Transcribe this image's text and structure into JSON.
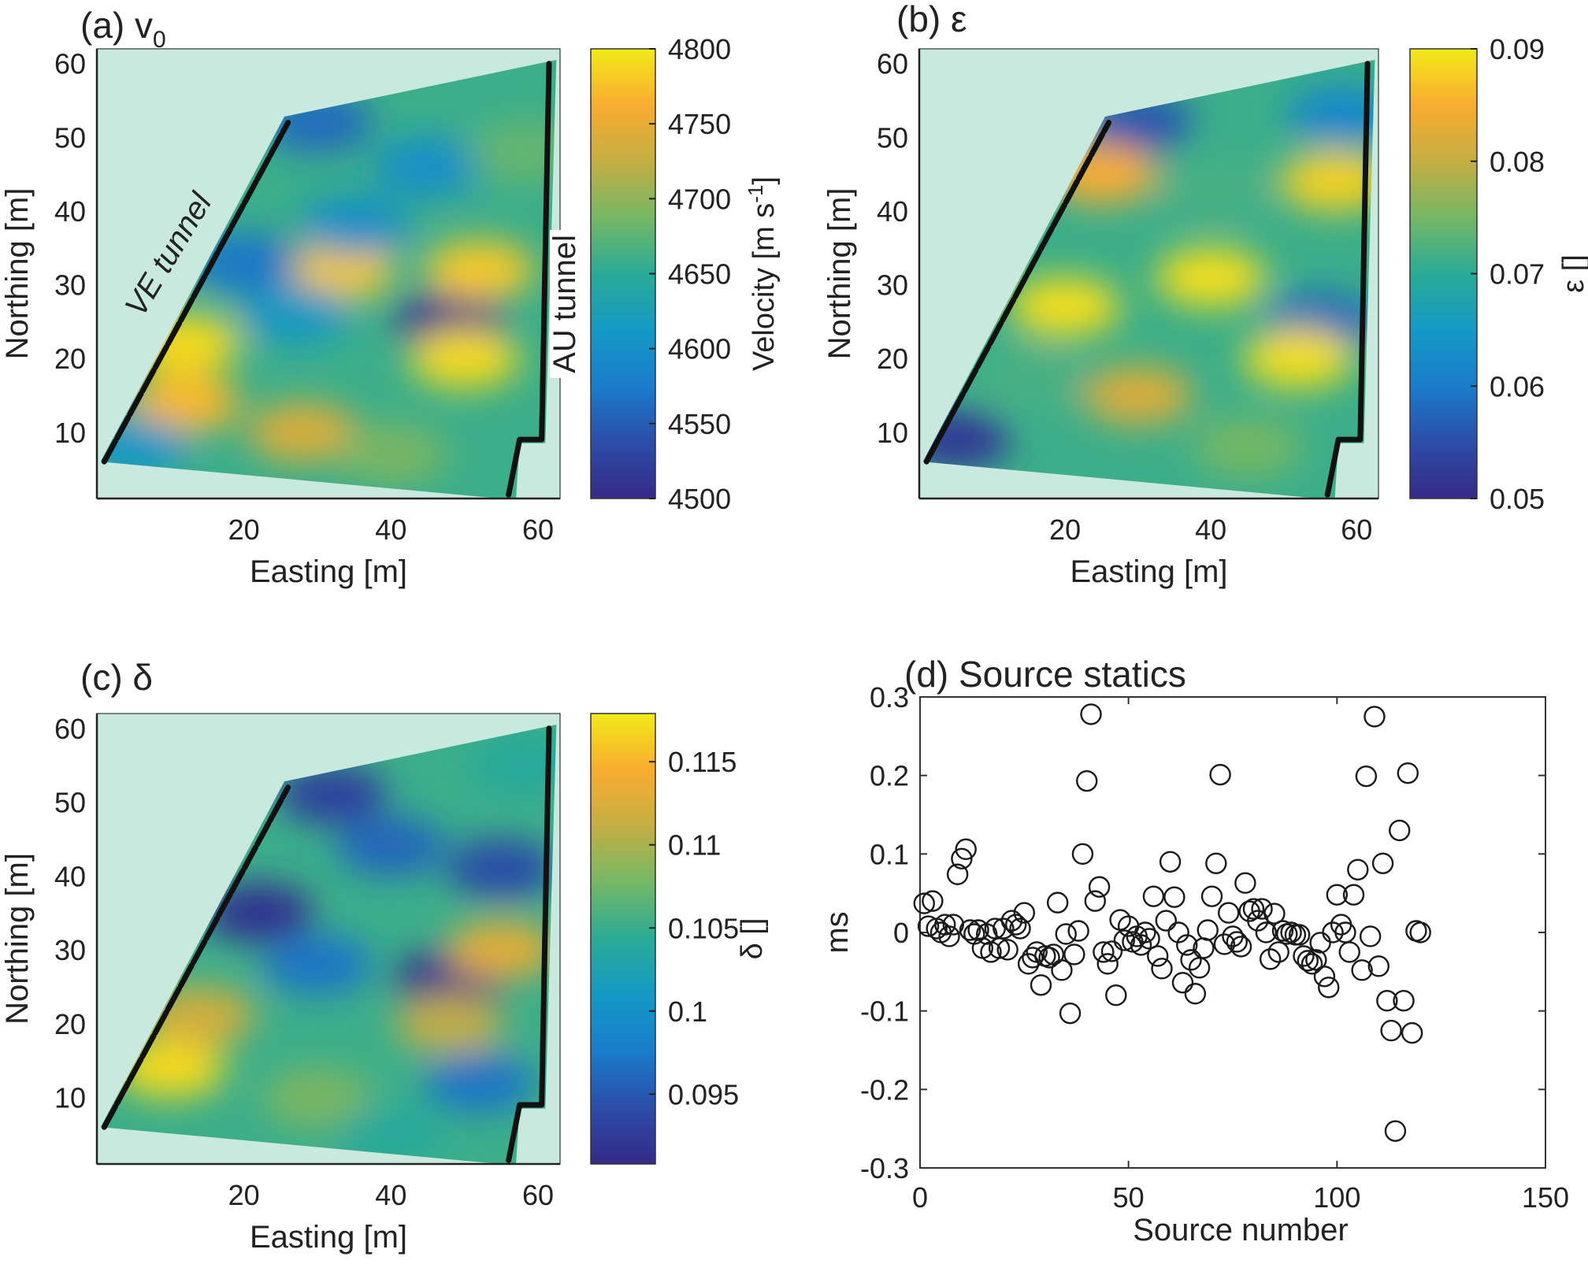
{
  "figure": {
    "panels": [
      "a",
      "b",
      "c",
      "d"
    ]
  },
  "chart_data": [
    {
      "id": "a",
      "type": "heatmap",
      "title": "(a) v",
      "title_subscript": "0",
      "xlabel": "Easting [m]",
      "ylabel": "Northing [m]",
      "xlim": [
        0,
        63
      ],
      "ylim": [
        1,
        62
      ],
      "xticks": [
        20,
        40,
        60
      ],
      "yticks": [
        10,
        20,
        30,
        40,
        50,
        60
      ],
      "colorbar": {
        "label": "Velocity [m s",
        "label_sup": "-1",
        "label_end": "]",
        "range": [
          4500,
          4800
        ],
        "ticks": [
          4500,
          4550,
          4600,
          4650,
          4700,
          4750,
          4800
        ],
        "colormap": "parula"
      },
      "annotations": [
        "VE tunnel",
        "AU tunnel"
      ],
      "features": [
        {
          "x": 48,
          "y": 25,
          "value": 4510
        },
        {
          "x": 50,
          "y": 20,
          "value": 4790
        },
        {
          "x": 33,
          "y": 32,
          "value": 4780
        },
        {
          "x": 52,
          "y": 32,
          "value": 4780
        },
        {
          "x": 12,
          "y": 22,
          "value": 4790
        },
        {
          "x": 12,
          "y": 14,
          "value": 4770
        },
        {
          "x": 30,
          "y": 52,
          "value": 4560
        },
        {
          "x": 45,
          "y": 46,
          "value": 4600
        },
        {
          "x": 20,
          "y": 33,
          "value": 4570
        },
        {
          "x": 27,
          "y": 26,
          "value": 4610
        },
        {
          "x": 5,
          "y": 8,
          "value": 4610
        },
        {
          "x": 28,
          "y": 10,
          "value": 4740
        },
        {
          "x": 40,
          "y": 7,
          "value": 4690
        },
        {
          "x": 35,
          "y": 38,
          "value": 4600
        },
        {
          "x": 58,
          "y": 48,
          "value": 4680
        }
      ]
    },
    {
      "id": "b",
      "type": "heatmap",
      "title": "(b) ε",
      "xlabel": "Easting [m]",
      "ylabel": "Northing [m]",
      "xlim": [
        0,
        63
      ],
      "ylim": [
        1,
        62
      ],
      "xticks": [
        20,
        40,
        60
      ],
      "yticks": [
        10,
        20,
        30,
        40,
        50,
        60
      ],
      "colorbar": {
        "label": "ε []",
        "range": [
          0.05,
          0.09
        ],
        "ticks": [
          0.05,
          0.06,
          0.07,
          0.08,
          0.09
        ],
        "colormap": "parula"
      },
      "features": [
        {
          "x": 5,
          "y": 9,
          "value": 0.052
        },
        {
          "x": 30,
          "y": 52,
          "value": 0.056
        },
        {
          "x": 55,
          "y": 25,
          "value": 0.058
        },
        {
          "x": 58,
          "y": 53,
          "value": 0.062
        },
        {
          "x": 20,
          "y": 27,
          "value": 0.089
        },
        {
          "x": 40,
          "y": 31,
          "value": 0.089
        },
        {
          "x": 52,
          "y": 20,
          "value": 0.089
        },
        {
          "x": 57,
          "y": 44,
          "value": 0.088
        },
        {
          "x": 40,
          "y": 43,
          "value": 0.072
        },
        {
          "x": 30,
          "y": 15,
          "value": 0.082
        },
        {
          "x": 15,
          "y": 17,
          "value": 0.072
        },
        {
          "x": 25,
          "y": 45,
          "value": 0.085
        },
        {
          "x": 45,
          "y": 8,
          "value": 0.075
        }
      ]
    },
    {
      "id": "c",
      "type": "heatmap",
      "title": "(c) δ",
      "xlabel": "Easting [m]",
      "ylabel": "Northing [m]",
      "xlim": [
        0,
        63
      ],
      "ylim": [
        1,
        62
      ],
      "xticks": [
        20,
        40,
        60
      ],
      "yticks": [
        10,
        20,
        30,
        40,
        50,
        60
      ],
      "colorbar": {
        "label": "δ []",
        "range": [
          0.0908,
          0.1179
        ],
        "ticks": [
          0.095,
          0.1,
          0.105,
          0.11,
          0.115
        ],
        "colormap": "parula"
      },
      "features": [
        {
          "x": 10,
          "y": 14,
          "value": 0.117
        },
        {
          "x": 22,
          "y": 35,
          "value": 0.0915
        },
        {
          "x": 48,
          "y": 26,
          "value": 0.0915
        },
        {
          "x": 32,
          "y": 51,
          "value": 0.093
        },
        {
          "x": 55,
          "y": 41,
          "value": 0.094
        },
        {
          "x": 55,
          "y": 30,
          "value": 0.113
        },
        {
          "x": 48,
          "y": 20,
          "value": 0.111
        },
        {
          "x": 14,
          "y": 21,
          "value": 0.112
        },
        {
          "x": 40,
          "y": 44,
          "value": 0.096
        },
        {
          "x": 30,
          "y": 28,
          "value": 0.097
        },
        {
          "x": 52,
          "y": 12,
          "value": 0.097
        },
        {
          "x": 30,
          "y": 10,
          "value": 0.108
        },
        {
          "x": 40,
          "y": 5,
          "value": 0.104
        },
        {
          "x": 58,
          "y": 55,
          "value": 0.104
        }
      ]
    },
    {
      "id": "d",
      "type": "scatter",
      "title": "(d) Source statics",
      "xlabel": "Source number",
      "ylabel": "ms",
      "xlim": [
        0,
        150
      ],
      "ylim": [
        -0.3,
        0.3
      ],
      "xticks": [
        0,
        50,
        100,
        150
      ],
      "yticks": [
        -0.3,
        -0.2,
        -0.1,
        0,
        0.1,
        0.2,
        0.3
      ],
      "ytick_labels": [
        "-0.3",
        "-0.2",
        "-0.1",
        "0",
        "0.1",
        "0.2",
        "0.3"
      ],
      "marker": "open-circle",
      "x": [
        1,
        2,
        3,
        4,
        5,
        6,
        7,
        8,
        9,
        10,
        11,
        12,
        13,
        14,
        15,
        16,
        17,
        18,
        19,
        20,
        21,
        22,
        23,
        24,
        25,
        26,
        27,
        28,
        29,
        30,
        31,
        32,
        33,
        34,
        35,
        36,
        37,
        38,
        39,
        40,
        41,
        42,
        43,
        44,
        45,
        46,
        47,
        48,
        49,
        50,
        51,
        52,
        53,
        54,
        55,
        56,
        57,
        58,
        59,
        60,
        61,
        62,
        63,
        64,
        65,
        66,
        67,
        68,
        69,
        70,
        71,
        72,
        73,
        74,
        75,
        76,
        77,
        78,
        79,
        80,
        81,
        82,
        83,
        84,
        85,
        86,
        87,
        88,
        89,
        90,
        91,
        92,
        93,
        94,
        95,
        96,
        97,
        98,
        99,
        100,
        101,
        102,
        103,
        104,
        105,
        106,
        107,
        108,
        109,
        110,
        111,
        112,
        113,
        114,
        115,
        116,
        117,
        118,
        119,
        120
      ],
      "y": [
        0.037,
        0.008,
        0.04,
        0.005,
        0.0,
        0.01,
        -0.005,
        0.01,
        0.074,
        0.094,
        0.106,
        0.003,
        -0.002,
        0.003,
        -0.02,
        -0.002,
        -0.025,
        0.005,
        -0.02,
        0.005,
        -0.022,
        0.015,
        0.01,
        0.005,
        0.025,
        -0.04,
        -0.032,
        -0.025,
        -0.067,
        -0.03,
        -0.032,
        -0.028,
        0.038,
        -0.048,
        -0.002,
        -0.103,
        -0.028,
        0.002,
        0.1,
        0.193,
        0.278,
        0.04,
        0.058,
        -0.025,
        -0.04,
        -0.024,
        -0.08,
        0.016,
        -0.01,
        0.008,
        -0.012,
        -0.005,
        -0.016,
        0.0,
        -0.008,
        0.046,
        -0.03,
        -0.046,
        0.015,
        0.09,
        0.045,
        0.0,
        -0.064,
        -0.016,
        -0.035,
        -0.078,
        -0.045,
        -0.02,
        0.003,
        0.046,
        0.088,
        0.201,
        -0.015,
        0.025,
        -0.005,
        -0.012,
        -0.018,
        0.063,
        0.027,
        0.03,
        0.015,
        0.03,
        0.0,
        -0.034,
        0.024,
        -0.025,
        0.002,
        -0.002,
        0.0,
        -0.003,
        -0.003,
        -0.03,
        -0.036,
        -0.04,
        -0.035,
        -0.013,
        -0.056,
        -0.07,
        0.0,
        0.048,
        0.01,
        0.0,
        -0.025,
        0.048,
        0.08,
        -0.048,
        0.199,
        -0.005,
        0.275,
        -0.043,
        0.088,
        -0.087,
        -0.125,
        -0.253,
        0.13,
        -0.087,
        0.203,
        -0.128,
        0.002,
        0.0
      ]
    }
  ]
}
